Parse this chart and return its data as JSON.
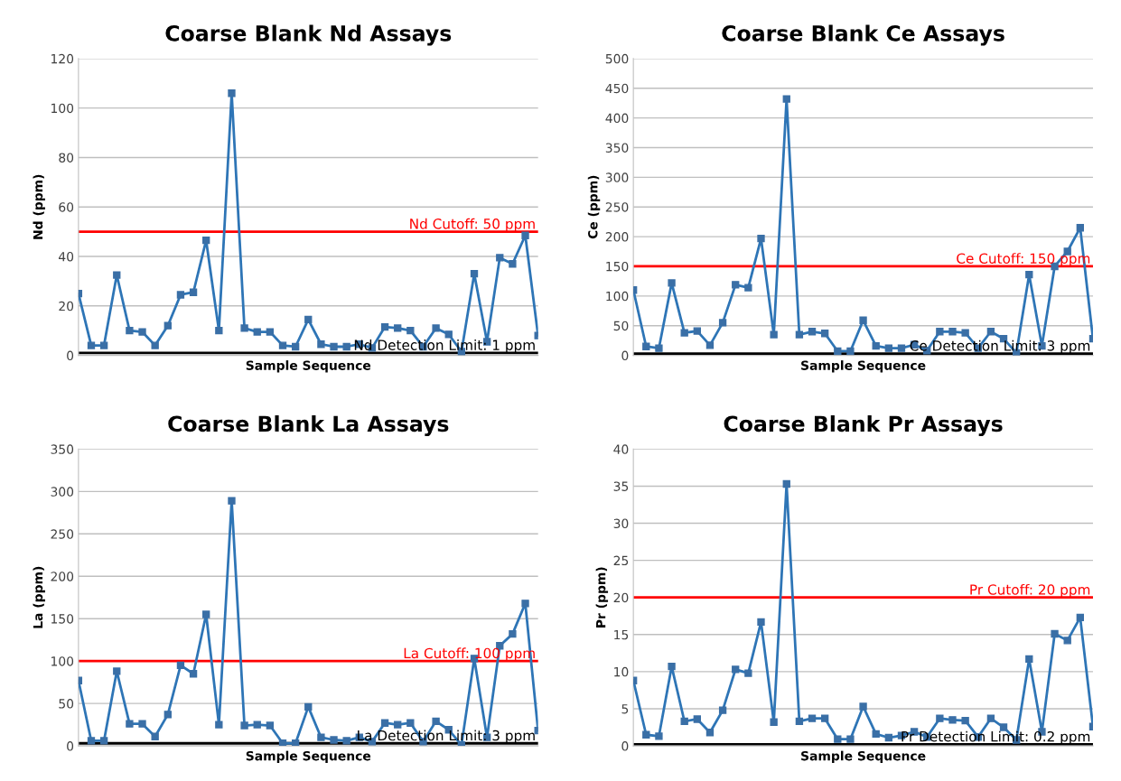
{
  "chart_data": [
    {
      "type": "line",
      "title": "Coarse Blank Nd Assays",
      "xlabel": "Sample Sequence",
      "ylabel": "Nd (ppm)",
      "categories": [
        null,
        null,
        null,
        null,
        null,
        null,
        null,
        null,
        null,
        null,
        null,
        null,
        null,
        null,
        null,
        null,
        null,
        null,
        null,
        null,
        null,
        null,
        null,
        null,
        null,
        null,
        null,
        null,
        null,
        null,
        null,
        null,
        null,
        null,
        null,
        null,
        null
      ],
      "series": [
        {
          "color": "#2e75b6",
          "values": [
            25,
            4,
            4,
            32.5,
            10,
            9.5,
            4,
            12,
            24.5,
            25.5,
            46.5,
            10,
            106,
            11,
            9.5,
            9.5,
            4,
            3.5,
            14.5,
            4.5,
            3.5,
            3.5,
            4.5,
            3,
            11.5,
            11,
            10,
            3.5,
            11,
            8.5,
            1.5,
            33,
            5.5,
            39.5,
            37,
            48.5,
            8
          ]
        }
      ],
      "ylim": [
        0,
        120
      ],
      "yticks": [
        0,
        20,
        40,
        60,
        80,
        100,
        120
      ],
      "grid": "y",
      "marker": "square",
      "line_style": "solid",
      "tick_labels": "y",
      "legend": false,
      "ref_lines": [
        {
          "axis": "y",
          "value": 50,
          "label": "Nd Cutoff: 50 ppm",
          "color": "#ff0000"
        },
        {
          "axis": "y",
          "value": 1,
          "label": "Nd Detection Limit: 1 ppm",
          "color": "#000000"
        }
      ]
    },
    {
      "type": "line",
      "title": "Coarse Blank Ce Assays",
      "xlabel": "Sample Sequence",
      "ylabel": "Ce (ppm)",
      "categories": [
        null,
        null,
        null,
        null,
        null,
        null,
        null,
        null,
        null,
        null,
        null,
        null,
        null,
        null,
        null,
        null,
        null,
        null,
        null,
        null,
        null,
        null,
        null,
        null,
        null,
        null,
        null,
        null,
        null,
        null,
        null,
        null,
        null,
        null,
        null,
        null,
        null
      ],
      "series": [
        {
          "color": "#2e75b6",
          "values": [
            110,
            15,
            12,
            122,
            38,
            41,
            17,
            55,
            119,
            114,
            197,
            35,
            432,
            35,
            40,
            37,
            7,
            7,
            59,
            16,
            12,
            12,
            18,
            8,
            40,
            40,
            38,
            12,
            40,
            28,
            4,
            136,
            16,
            150,
            175,
            215,
            28
          ]
        }
      ],
      "ylim": [
        0,
        500
      ],
      "yticks": [
        0,
        50,
        100,
        150,
        200,
        250,
        300,
        350,
        400,
        450,
        500
      ],
      "grid": "y",
      "marker": "square",
      "line_style": "solid",
      "tick_labels": "y",
      "legend": false,
      "ref_lines": [
        {
          "axis": "y",
          "value": 150,
          "label": "Ce Cutoff: 150 ppm",
          "color": "#ff0000"
        },
        {
          "axis": "y",
          "value": 3,
          "label": "Ce Detection Limit: 3 ppm",
          "color": "#000000"
        }
      ]
    },
    {
      "type": "line",
      "title": "Coarse Blank La Assays",
      "xlabel": "Sample Sequence",
      "ylabel": "La (ppm)",
      "categories": [
        null,
        null,
        null,
        null,
        null,
        null,
        null,
        null,
        null,
        null,
        null,
        null,
        null,
        null,
        null,
        null,
        null,
        null,
        null,
        null,
        null,
        null,
        null,
        null,
        null,
        null,
        null,
        null,
        null,
        null,
        null,
        null,
        null,
        null,
        null,
        null,
        null
      ],
      "series": [
        {
          "color": "#2e75b6",
          "values": [
            77,
            6,
            6,
            88,
            26,
            26,
            11,
            37,
            95,
            85,
            155,
            25,
            289,
            24,
            25,
            24,
            3,
            3,
            46,
            10,
            7,
            6,
            10,
            5,
            27,
            25,
            27,
            5,
            29,
            19,
            1,
            103,
            10,
            118,
            132,
            168,
            18
          ]
        }
      ],
      "ylim": [
        0,
        350
      ],
      "yticks": [
        0,
        50,
        100,
        150,
        200,
        250,
        300,
        350
      ],
      "grid": "y",
      "marker": "square",
      "line_style": "solid",
      "tick_labels": "y",
      "legend": false,
      "ref_lines": [
        {
          "axis": "y",
          "value": 100,
          "label": "La Cutoff: 100 ppm",
          "color": "#ff0000"
        },
        {
          "axis": "y",
          "value": 3,
          "label": "La Detection Limit: 3 ppm",
          "color": "#000000"
        }
      ]
    },
    {
      "type": "line",
      "title": "Coarse Blank Pr Assays",
      "xlabel": "Sample Sequence",
      "ylabel": "Pr (ppm)",
      "categories": [
        null,
        null,
        null,
        null,
        null,
        null,
        null,
        null,
        null,
        null,
        null,
        null,
        null,
        null,
        null,
        null,
        null,
        null,
        null,
        null,
        null,
        null,
        null,
        null,
        null,
        null,
        null,
        null,
        null,
        null,
        null,
        null,
        null,
        null,
        null,
        null,
        null
      ],
      "series": [
        {
          "color": "#2e75b6",
          "values": [
            8.8,
            1.5,
            1.3,
            10.7,
            3.3,
            3.6,
            1.8,
            4.8,
            10.3,
            9.8,
            16.7,
            3.2,
            35.3,
            3.3,
            3.7,
            3.7,
            0.9,
            0.9,
            5.3,
            1.6,
            1.1,
            1.4,
            1.9,
            1.2,
            3.7,
            3.5,
            3.4,
            1.2,
            3.7,
            2.5,
            0.8,
            11.7,
            1.9,
            15.1,
            14.2,
            17.3,
            2.6
          ]
        }
      ],
      "ylim": [
        0,
        40
      ],
      "yticks": [
        0,
        5,
        10,
        15,
        20,
        25,
        30,
        35,
        40
      ],
      "grid": "y",
      "marker": "square",
      "line_style": "solid",
      "tick_labels": "y",
      "legend": false,
      "ref_lines": [
        {
          "axis": "y",
          "value": 20,
          "label": "Pr Cutoff: 20 ppm",
          "color": "#ff0000"
        },
        {
          "axis": "y",
          "value": 0.2,
          "label": "Pr Detection Limit: 0.2 ppm",
          "color": "#000000"
        }
      ]
    }
  ]
}
